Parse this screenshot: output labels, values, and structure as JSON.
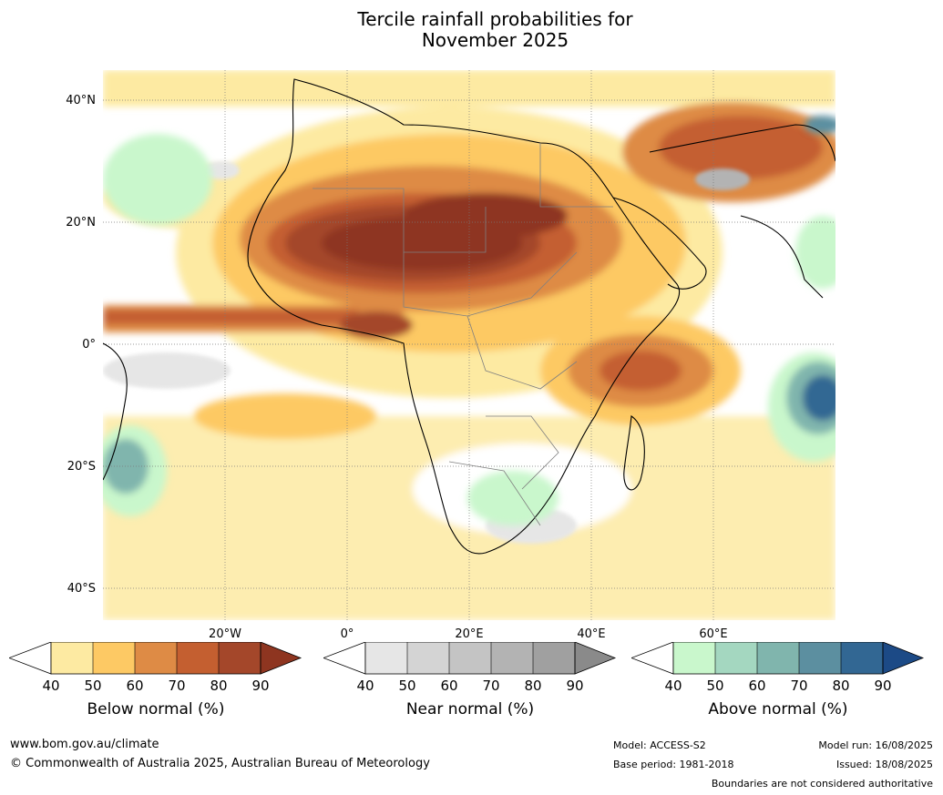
{
  "title": {
    "line1": "Tercile rainfall probabilities for",
    "line2": "November 2025"
  },
  "map": {
    "lat_labels": [
      "40°N",
      "20°N",
      "0°",
      "20°S",
      "40°S"
    ],
    "lon_labels": [
      "20°W",
      "0°",
      "20°E",
      "40°E",
      "60°E"
    ],
    "ocean_color": "#ffffff",
    "gridlines": "dotted"
  },
  "legend": {
    "below": {
      "label": "Below normal (%)",
      "ticks": [
        "40",
        "50",
        "60",
        "70",
        "80",
        "90"
      ],
      "colors": [
        "#ffffff",
        "#fdeaa2",
        "#fdc964",
        "#de8b45",
        "#c45f30",
        "#a4472a",
        "#8e3520"
      ]
    },
    "near": {
      "label": "Near normal (%)",
      "ticks": [
        "40",
        "50",
        "60",
        "70",
        "80",
        "90"
      ],
      "colors": [
        "#ffffff",
        "#e6e6e6",
        "#d4d4d4",
        "#c4c4c4",
        "#b3b3b3",
        "#a0a0a0",
        "#8a8a8a"
      ]
    },
    "above": {
      "label": "Above normal (%)",
      "ticks": [
        "40",
        "50",
        "60",
        "70",
        "80",
        "90"
      ],
      "colors": [
        "#ffffff",
        "#c9f7cc",
        "#a4d7c0",
        "#80b5ad",
        "#5c8fa0",
        "#326793",
        "#1c4a86"
      ]
    }
  },
  "footer": {
    "website": "www.bom.gov.au/climate",
    "copyright": "© Commonwealth of Australia 2025, Australian Bureau of Meteorology",
    "model": "Model: ACCESS-S2",
    "base_period": "Base period: 1981-2018",
    "model_run": "Model run: 16/08/2025",
    "issued": "Issued: 18/08/2025",
    "disclaimer": "Boundaries are not considered authoritative"
  }
}
